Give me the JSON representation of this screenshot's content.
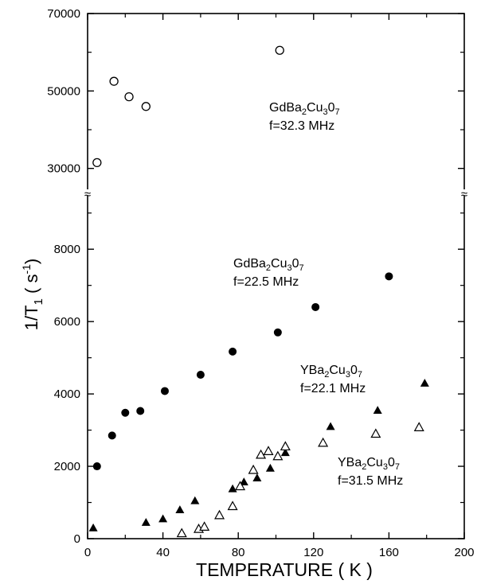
{
  "chart_data": {
    "type": "scatter",
    "xlabel": "TEMPERATURE ( K )",
    "ylabel": {
      "main": "1/T",
      "sub": "1",
      "paren_open": " ( s",
      "sup": "-1",
      "paren_close": ")"
    },
    "xlim": [
      0,
      200
    ],
    "ylim_lower": [
      0,
      9500
    ],
    "ylim_upper": [
      25000,
      70000
    ],
    "axis_break": "≈",
    "xticks": [
      "0",
      "40",
      "80",
      "120",
      "160",
      "200"
    ],
    "xtick_values": [
      0,
      40,
      80,
      120,
      160,
      200
    ],
    "yticks_lower": [
      "0",
      "2000",
      "4000",
      "6000",
      "8000"
    ],
    "ytick_values_lower": [
      0,
      2000,
      4000,
      6000,
      8000
    ],
    "yticks_upper": [
      "30000",
      "50000",
      "70000"
    ],
    "ytick_values_upper": [
      30000,
      50000,
      70000
    ],
    "series": [
      {
        "marker": "open-circle",
        "label_compound": {
          "a": "GdBa",
          "b": "2",
          "c": "Cu",
          "d": "3",
          "e": "0",
          "f": "7"
        },
        "label_freq": "f=32.3 MHz",
        "x": [
          5,
          14,
          22,
          31,
          102
        ],
        "y": [
          31500,
          52500,
          48500,
          46000,
          60500
        ]
      },
      {
        "marker": "filled-circle",
        "label_compound": {
          "a": "GdBa",
          "b": "2",
          "c": "Cu",
          "d": "3",
          "e": "0",
          "f": "7"
        },
        "label_freq": "f=22.5 MHz",
        "x": [
          5,
          13,
          20,
          28,
          41,
          60,
          77,
          101,
          121,
          160
        ],
        "y": [
          2000,
          2850,
          3480,
          3530,
          4080,
          4530,
          5170,
          5700,
          6400,
          7250
        ]
      },
      {
        "marker": "filled-triangle",
        "label_compound": {
          "a": "YBa",
          "b": "2",
          "c": "Cu",
          "d": "3",
          "e": "0",
          "f": "7"
        },
        "label_freq": "f=22.1 MHz",
        "x": [
          3,
          31,
          40,
          49,
          57,
          77,
          83,
          90,
          97,
          105,
          129,
          154,
          179
        ],
        "y": [
          300,
          450,
          550,
          800,
          1050,
          1380,
          1570,
          1680,
          1950,
          2380,
          3100,
          3550,
          4300
        ]
      },
      {
        "marker": "open-triangle",
        "label_compound": {
          "a": "YBa",
          "b": "2",
          "c": "Cu",
          "d": "3",
          "e": "0",
          "f": "7"
        },
        "label_freq": "f=31.5 MHz",
        "x": [
          50,
          59,
          62,
          70,
          77,
          81,
          88,
          92,
          96,
          101,
          105,
          125,
          153,
          176
        ],
        "y": [
          150,
          270,
          330,
          650,
          900,
          1450,
          1900,
          2320,
          2420,
          2280,
          2550,
          2650,
          2900,
          3080
        ]
      }
    ]
  }
}
